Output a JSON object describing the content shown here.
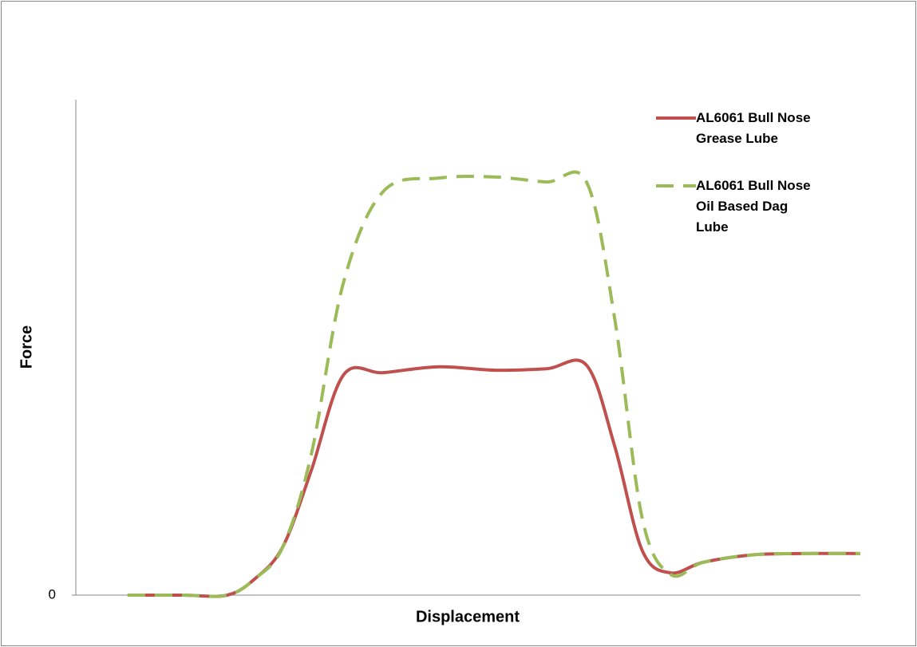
{
  "chart_data": {
    "type": "line",
    "x_label": "Displacement",
    "y_label": "Force",
    "xlim": [
      0,
      100
    ],
    "ylim": [
      0,
      100
    ],
    "yticks": [
      0
    ],
    "grid": false,
    "legend": "top-right",
    "series": [
      {
        "name": "AL6061 Bull Nose Grease Lube",
        "color": "#c0504d",
        "style": "solid",
        "x": [
          6.6,
          13.7,
          19.3,
          22.9,
          26.4,
          30,
          34.1,
          39.2,
          46.3,
          53.4,
          60,
          65.1,
          68.7,
          72.2,
          75.8,
          79.9,
          86,
          92.1,
          100
        ],
        "values": [
          0,
          0,
          0,
          3.4,
          9.8,
          25.1,
          44.4,
          44.9,
          46.1,
          45.4,
          45.7,
          46.4,
          30,
          9,
          4.5,
          6.6,
          8.1,
          8.4,
          8.4
        ]
      },
      {
        "name": "AL6061 Bull Nose Oil Based Dag Lube",
        "color": "#9bbb59",
        "style": "dashed",
        "x": [
          6.6,
          13.7,
          19.3,
          22.9,
          26.4,
          30,
          34.1,
          39.2,
          46.3,
          53.4,
          60,
          65.1,
          68.7,
          72.2,
          75.8,
          79.9,
          86,
          92.1,
          100
        ],
        "values": [
          0,
          0,
          0,
          3.4,
          9.8,
          28.3,
          63,
          81.5,
          84.2,
          84.4,
          83.4,
          83.4,
          55.7,
          15.5,
          4.2,
          6.6,
          8.1,
          8.4,
          8.4
        ]
      }
    ]
  }
}
